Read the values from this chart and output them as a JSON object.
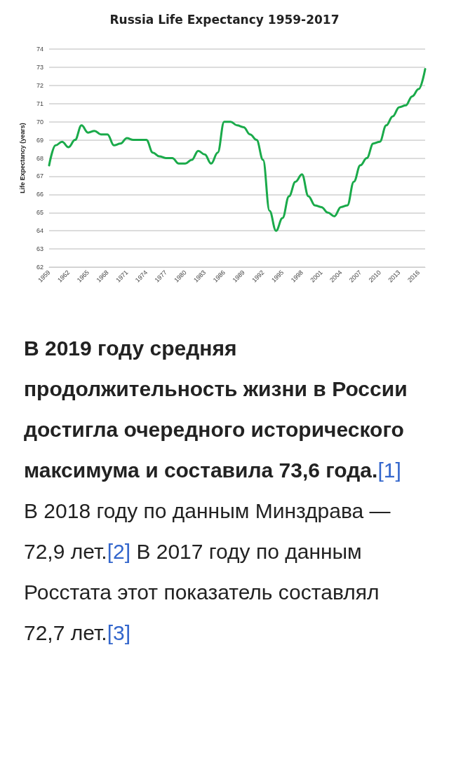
{
  "chart_data": {
    "type": "line",
    "title": "Russia Life Expectancy 1959-2017",
    "ylabel": "Life Expectancy (years)",
    "categories": [
      "1959",
      null,
      null,
      "1962",
      null,
      null,
      "1965",
      null,
      null,
      "1968",
      null,
      null,
      "1971",
      null,
      null,
      "1974",
      null,
      null,
      "1977",
      null,
      null,
      "1980",
      null,
      null,
      "1983",
      null,
      null,
      "1986",
      null,
      null,
      "1989",
      null,
      null,
      "1992",
      null,
      null,
      "1995",
      null,
      null,
      "1998",
      null,
      null,
      "2001",
      null,
      null,
      "2004",
      null,
      null,
      "2007",
      null,
      null,
      "2010",
      null,
      null,
      "2013",
      null,
      null,
      "2016",
      null
    ],
    "series": [
      {
        "color": "#1aaa4a",
        "values": [
          67.6,
          68.7,
          68.9,
          68.6,
          69.0,
          69.8,
          69.4,
          69.5,
          69.3,
          69.3,
          68.7,
          68.8,
          69.1,
          69.0,
          69.0,
          69.0,
          68.3,
          68.1,
          68.0,
          68.0,
          67.7,
          67.7,
          67.9,
          68.4,
          68.2,
          67.7,
          68.3,
          70.0,
          70.0,
          69.8,
          69.7,
          69.3,
          69.0,
          67.9,
          65.1,
          64.0,
          64.7,
          65.9,
          66.7,
          67.1,
          65.9,
          65.4,
          65.3,
          65.0,
          64.8,
          65.3,
          65.4,
          66.7,
          67.6,
          68.0,
          68.8,
          68.9,
          69.8,
          70.3,
          70.8,
          70.9,
          71.4,
          71.8,
          72.9
        ]
      }
    ],
    "ylim": [
      62,
      74
    ],
    "yticks": [
      62,
      63,
      64,
      65,
      66,
      67,
      68,
      69,
      70,
      71,
      72,
      73,
      74
    ],
    "grid": "y",
    "marker": "none",
    "line_style": "solid",
    "annotations": [
      "В 2019 году средняя продолжительность жизни в России достигла очередного исторического максимума и составила 73,6 года.",
      "[1]",
      "В 2018 году по данным Минздрава — 72,9 лет.",
      "[2]",
      "В 2017 году по данным Росстата этот показатель составлял 72,7 лет.",
      "[3]"
    ]
  }
}
